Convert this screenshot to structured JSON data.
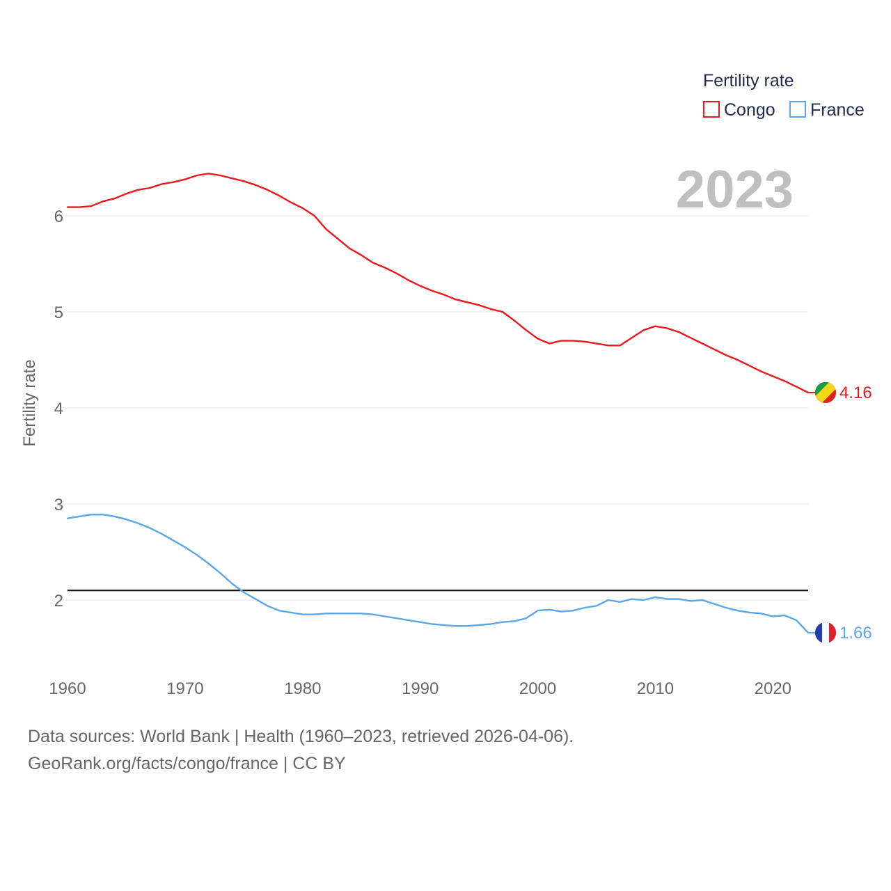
{
  "chart_data": {
    "type": "line",
    "ylabel": "Fertility rate",
    "year_label": "2023",
    "legend": {
      "title": "Fertility rate",
      "placement": "top-right"
    },
    "xlim": [
      1960,
      2023
    ],
    "ylim": [
      1.4,
      6.9
    ],
    "x_ticks": [
      1960,
      1970,
      1980,
      1990,
      2000,
      2010,
      2020
    ],
    "y_ticks": [
      2,
      3,
      4,
      5,
      6
    ],
    "reference_line": {
      "value": 2.1,
      "color": "#111111"
    },
    "x": [
      1960,
      1961,
      1962,
      1963,
      1964,
      1965,
      1966,
      1967,
      1968,
      1969,
      1970,
      1971,
      1972,
      1973,
      1974,
      1975,
      1976,
      1977,
      1978,
      1979,
      1980,
      1981,
      1982,
      1983,
      1984,
      1985,
      1986,
      1987,
      1988,
      1989,
      1990,
      1991,
      1992,
      1993,
      1994,
      1995,
      1996,
      1997,
      1998,
      1999,
      2000,
      2001,
      2002,
      2003,
      2004,
      2005,
      2006,
      2007,
      2008,
      2009,
      2010,
      2011,
      2012,
      2013,
      2014,
      2015,
      2016,
      2017,
      2018,
      2019,
      2020,
      2021,
      2022,
      2023
    ],
    "series": [
      {
        "name": "Congo",
        "color": "#e8191e",
        "end_label": "4.16",
        "flag": "congo-flag-icon",
        "values": [
          6.09,
          6.09,
          6.1,
          6.15,
          6.18,
          6.23,
          6.27,
          6.29,
          6.33,
          6.35,
          6.38,
          6.42,
          6.44,
          6.42,
          6.39,
          6.36,
          6.32,
          6.27,
          6.21,
          6.14,
          6.08,
          6.0,
          5.86,
          5.76,
          5.66,
          5.59,
          5.51,
          5.46,
          5.4,
          5.33,
          5.27,
          5.22,
          5.18,
          5.13,
          5.1,
          5.07,
          5.03,
          5.0,
          4.91,
          4.81,
          4.72,
          4.67,
          4.7,
          4.7,
          4.69,
          4.67,
          4.65,
          4.65,
          4.73,
          4.81,
          4.85,
          4.83,
          4.79,
          4.73,
          4.67,
          4.61,
          4.55,
          4.5,
          4.44,
          4.38,
          4.33,
          4.28,
          4.22,
          4.16
        ]
      },
      {
        "name": "France",
        "color": "#5aa6e6",
        "end_label": "1.66",
        "flag": "france-flag-icon",
        "values": [
          2.85,
          2.87,
          2.89,
          2.89,
          2.87,
          2.84,
          2.8,
          2.75,
          2.69,
          2.62,
          2.55,
          2.47,
          2.38,
          2.28,
          2.17,
          2.08,
          2.01,
          1.94,
          1.89,
          1.87,
          1.85,
          1.85,
          1.86,
          1.86,
          1.86,
          1.86,
          1.85,
          1.83,
          1.81,
          1.79,
          1.77,
          1.75,
          1.74,
          1.73,
          1.73,
          1.74,
          1.75,
          1.77,
          1.78,
          1.81,
          1.89,
          1.9,
          1.88,
          1.89,
          1.92,
          1.94,
          2.0,
          1.98,
          2.01,
          2.0,
          2.03,
          2.01,
          2.01,
          1.99,
          2.0,
          1.96,
          1.92,
          1.89,
          1.87,
          1.86,
          1.83,
          1.84,
          1.79,
          1.66
        ]
      }
    ]
  },
  "footer": {
    "line1": "Data sources: World Bank | Health (1960–2023, retrieved 2026-04-06).",
    "line2": "GeoRank.org/facts/congo/france | CC BY"
  }
}
